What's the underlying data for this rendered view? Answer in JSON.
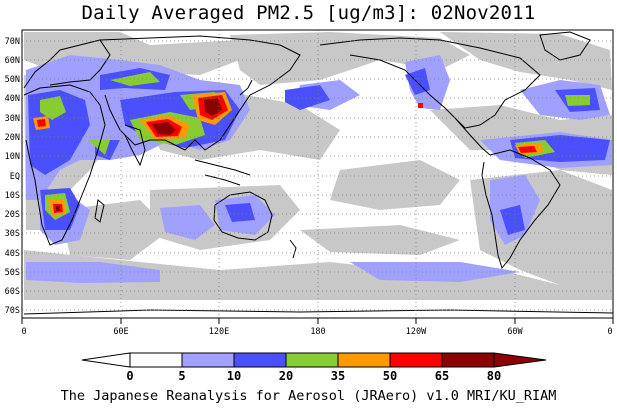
{
  "title": "Daily Averaged PM2.5 [ug/m3]: 02Nov2011",
  "footer": "The Japanese Reanalysis for Aerosol (JRAero) v1.0 MRI/KU_RIAM",
  "lat_labels": [
    "70N",
    "60N",
    "50N",
    "40N",
    "30N",
    "20N",
    "10N",
    "EQ",
    "10S",
    "20S",
    "30S",
    "40S",
    "50S",
    "60S",
    "70S"
  ],
  "lon_labels": [
    "0",
    "60E",
    "120E",
    "180",
    "120W",
    "60W",
    "0"
  ],
  "colorbar": {
    "ticks": [
      "0",
      "5",
      "10",
      "20",
      "35",
      "50",
      "65",
      "80"
    ],
    "colors": [
      "#ffffff",
      "#c8c8c8",
      "#a0a0ff",
      "#4a50ff",
      "#88cc33",
      "#ff9900",
      "#ff0000",
      "#8b0000"
    ]
  }
}
